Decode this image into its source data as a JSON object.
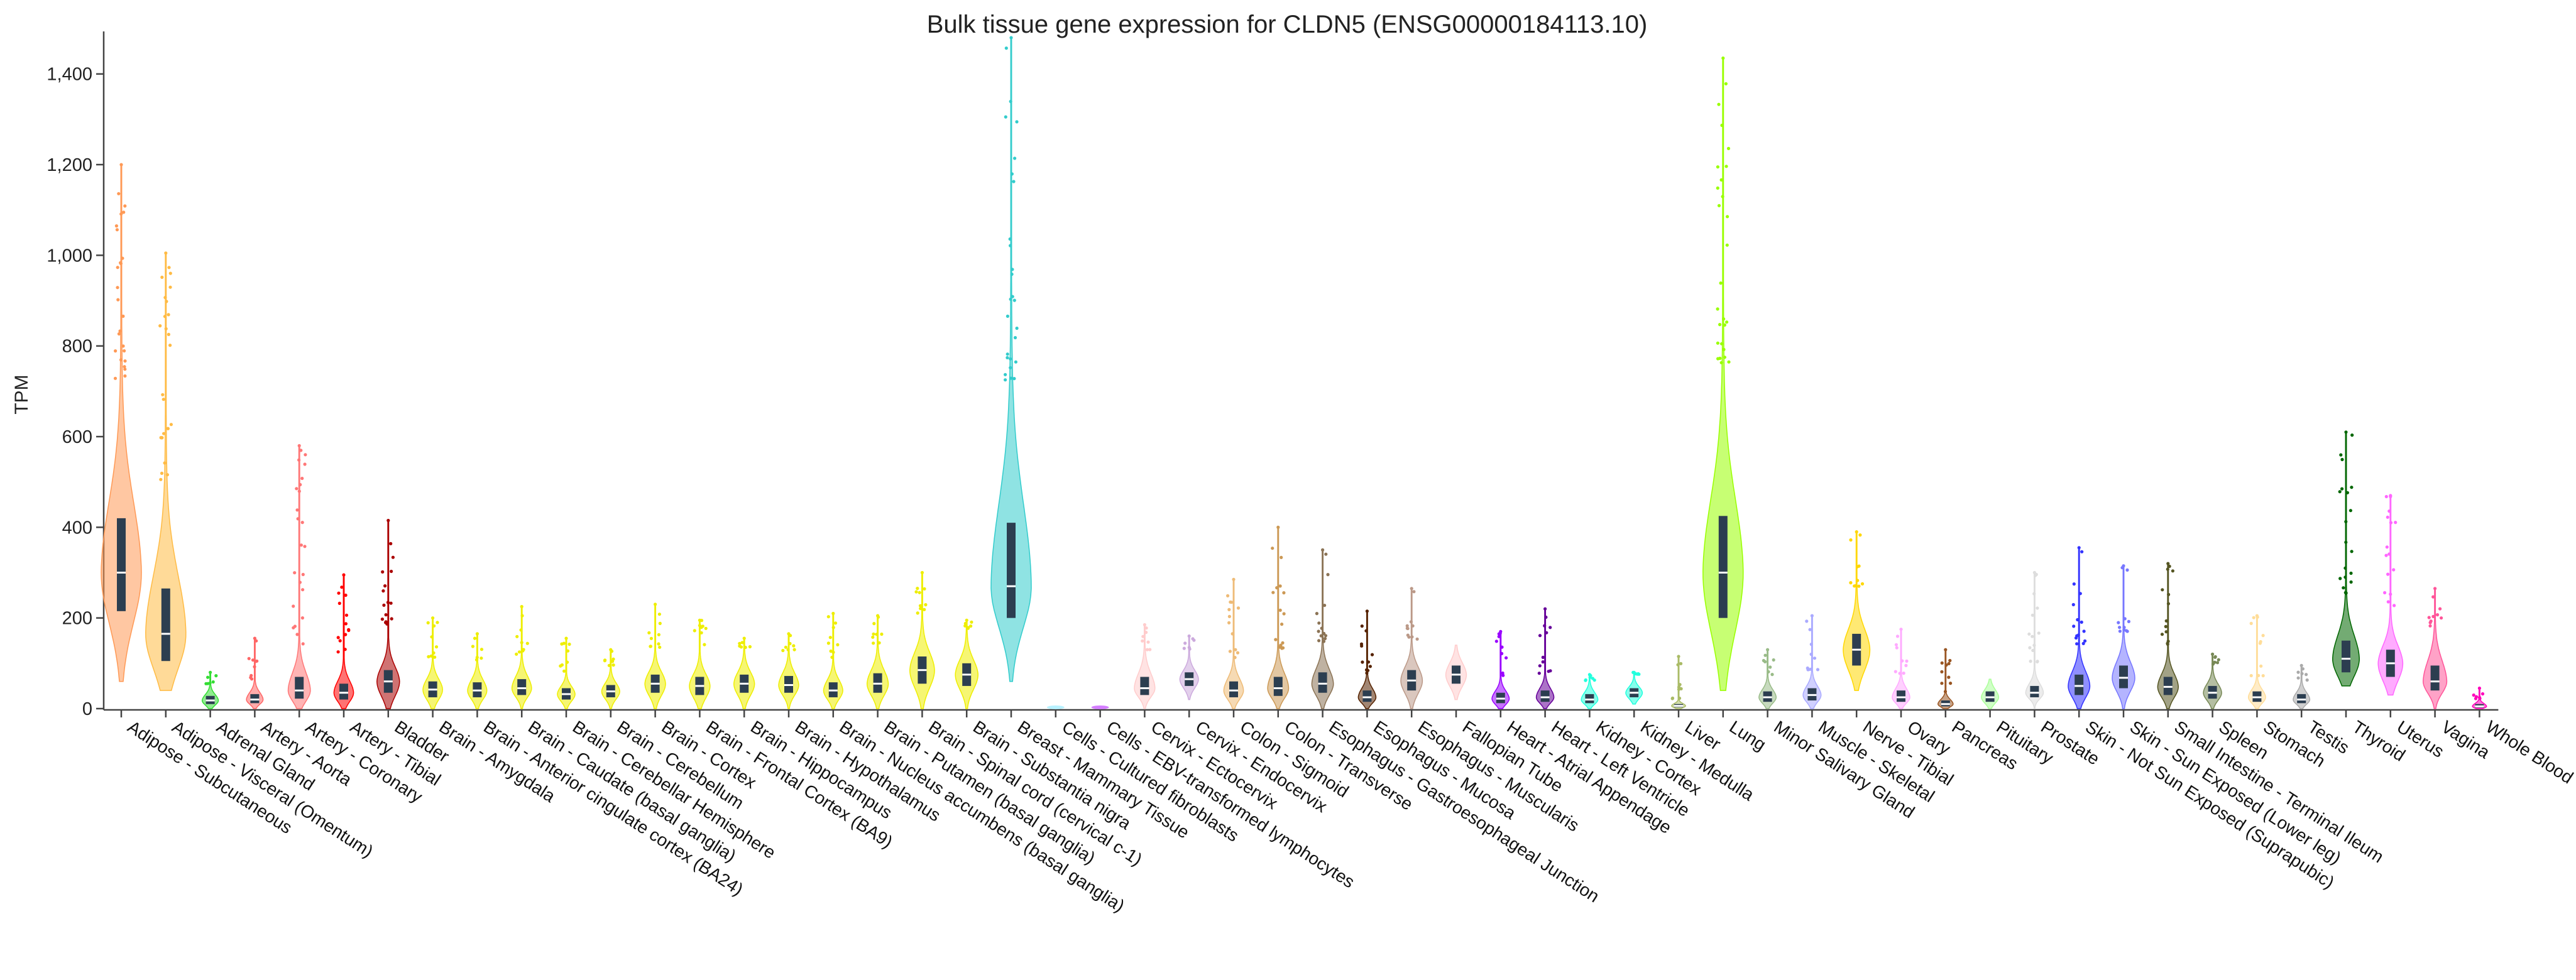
{
  "chart_data": {
    "type": "violin",
    "title": "Bulk tissue gene expression for CLDN5 (ENSG00000184113.10)",
    "xlabel": "",
    "ylabel": "TPM",
    "ylim": [
      0,
      1480
    ],
    "yticks": [
      0,
      200,
      400,
      600,
      800,
      1000,
      1200,
      1400
    ],
    "ytick_labels": [
      "0",
      "200",
      "400",
      "600",
      "800",
      "1,000",
      "1,200",
      "1,400"
    ],
    "grid": false,
    "categories": [
      "Adipose - Subcutaneous",
      "Adipose - Visceral (Omentum)",
      "Adrenal Gland",
      "Artery - Aorta",
      "Artery - Coronary",
      "Artery - Tibial",
      "Bladder",
      "Brain - Amygdala",
      "Brain - Anterior cingulate cortex (BA24)",
      "Brain - Caudate (basal ganglia)",
      "Brain - Cerebellar Hemisphere",
      "Brain - Cerebellum",
      "Brain - Cortex",
      "Brain - Frontal Cortex (BA9)",
      "Brain - Hippocampus",
      "Brain - Hypothalamus",
      "Brain - Nucleus accumbens (basal ganglia)",
      "Brain - Putamen (basal ganglia)",
      "Brain - Spinal cord (cervical c-1)",
      "Brain - Substantia nigra",
      "Breast - Mammary Tissue",
      "Cells - Cultured fibroblasts",
      "Cells - EBV-transformed lymphocytes",
      "Cervix - Ectocervix",
      "Cervix - Endocervix",
      "Colon - Sigmoid",
      "Colon - Transverse",
      "Esophagus - Gastroesophageal Junction",
      "Esophagus - Mucosa",
      "Esophagus - Muscularis",
      "Fallopian Tube",
      "Heart - Atrial Appendage",
      "Heart - Left Ventricle",
      "Kidney - Cortex",
      "Kidney - Medulla",
      "Liver",
      "Lung",
      "Minor Salivary Gland",
      "Muscle - Skeletal",
      "Nerve - Tibial",
      "Ovary",
      "Pancreas",
      "Pituitary",
      "Prostate",
      "Skin - Not Sun Exposed (Suprapubic)",
      "Skin - Sun Exposed (Lower leg)",
      "Small Intestine - Terminal Ileum",
      "Spleen",
      "Stomach",
      "Testis",
      "Thyroid",
      "Uterus",
      "Vagina",
      "Whole Blood"
    ],
    "series": [
      {
        "name": "Adipose - Subcutaneous",
        "color": "#FF9955",
        "min": 60,
        "q1": 215,
        "median": 300,
        "q3": 420,
        "max": 1200
      },
      {
        "name": "Adipose - Visceral (Omentum)",
        "color": "#FFBB44",
        "min": 40,
        "q1": 105,
        "median": 165,
        "q3": 265,
        "max": 1005
      },
      {
        "name": "Adrenal Gland",
        "color": "#33DD33",
        "min": 0,
        "q1": 10,
        "median": 18,
        "q3": 28,
        "max": 80
      },
      {
        "name": "Artery - Aorta",
        "color": "#FF6666",
        "min": 0,
        "q1": 12,
        "median": 20,
        "q3": 32,
        "max": 155
      },
      {
        "name": "Artery - Coronary",
        "color": "#FF7777",
        "min": 0,
        "q1": 22,
        "median": 40,
        "q3": 70,
        "max": 580
      },
      {
        "name": "Artery - Tibial",
        "color": "#FF0000",
        "min": 0,
        "q1": 20,
        "median": 35,
        "q3": 55,
        "max": 295
      },
      {
        "name": "Bladder",
        "color": "#AA0000",
        "min": 0,
        "q1": 35,
        "median": 60,
        "q3": 85,
        "max": 415
      },
      {
        "name": "Brain - Amygdala",
        "color": "#EEEE00",
        "min": 0,
        "q1": 25,
        "median": 42,
        "q3": 60,
        "max": 200
      },
      {
        "name": "Brain - Anterior cingulate cortex (BA24)",
        "color": "#EEEE00",
        "min": 0,
        "q1": 25,
        "median": 40,
        "q3": 58,
        "max": 165
      },
      {
        "name": "Brain - Caudate (basal ganglia)",
        "color": "#EEEE00",
        "min": 0,
        "q1": 30,
        "median": 45,
        "q3": 65,
        "max": 225
      },
      {
        "name": "Brain - Cerebellar Hemisphere",
        "color": "#EEEE00",
        "min": 0,
        "q1": 20,
        "median": 32,
        "q3": 45,
        "max": 155
      },
      {
        "name": "Brain - Cerebellum",
        "color": "#EEEE00",
        "min": 0,
        "q1": 25,
        "median": 38,
        "q3": 52,
        "max": 130
      },
      {
        "name": "Brain - Cortex",
        "color": "#EEEE00",
        "min": 0,
        "q1": 35,
        "median": 55,
        "q3": 75,
        "max": 230
      },
      {
        "name": "Brain - Frontal Cortex (BA9)",
        "color": "#EEEE00",
        "min": 0,
        "q1": 30,
        "median": 50,
        "q3": 70,
        "max": 195
      },
      {
        "name": "Brain - Hippocampus",
        "color": "#EEEE00",
        "min": 0,
        "q1": 35,
        "median": 55,
        "q3": 75,
        "max": 155
      },
      {
        "name": "Brain - Hypothalamus",
        "color": "#EEEE00",
        "min": 0,
        "q1": 35,
        "median": 52,
        "q3": 72,
        "max": 165
      },
      {
        "name": "Brain - Nucleus accumbens (basal ganglia)",
        "color": "#EEEE00",
        "min": 0,
        "q1": 25,
        "median": 40,
        "q3": 58,
        "max": 210
      },
      {
        "name": "Brain - Putamen (basal ganglia)",
        "color": "#EEEE00",
        "min": 0,
        "q1": 35,
        "median": 55,
        "q3": 78,
        "max": 205
      },
      {
        "name": "Brain - Spinal cord (cervical c-1)",
        "color": "#EEEE00",
        "min": 0,
        "q1": 55,
        "median": 85,
        "q3": 115,
        "max": 300
      },
      {
        "name": "Brain - Substantia nigra",
        "color": "#EEEE00",
        "min": 0,
        "q1": 50,
        "median": 75,
        "q3": 100,
        "max": 195
      },
      {
        "name": "Breast - Mammary Tissue",
        "color": "#33CCCC",
        "min": 60,
        "q1": 200,
        "median": 270,
        "q3": 410,
        "max": 1480
      },
      {
        "name": "Cells - Cultured fibroblasts",
        "color": "#AAEEFF",
        "min": 0,
        "q1": 0,
        "median": 0,
        "q3": 0,
        "max": 3
      },
      {
        "name": "Cells - EBV-transformed lymphocytes",
        "color": "#CC66FF",
        "min": 0,
        "q1": 0,
        "median": 0,
        "q3": 0,
        "max": 2
      },
      {
        "name": "Cervix - Ectocervix",
        "color": "#FFCCCC",
        "min": 0,
        "q1": 30,
        "median": 45,
        "q3": 70,
        "max": 185
      },
      {
        "name": "Cervix - Endocervix",
        "color": "#CCAADD",
        "min": 20,
        "q1": 50,
        "median": 65,
        "q3": 80,
        "max": 160
      },
      {
        "name": "Colon - Sigmoid",
        "color": "#EEBB77",
        "min": 0,
        "q1": 25,
        "median": 40,
        "q3": 60,
        "max": 285
      },
      {
        "name": "Colon - Transverse",
        "color": "#CC9955",
        "min": 0,
        "q1": 28,
        "median": 45,
        "q3": 70,
        "max": 400
      },
      {
        "name": "Esophagus - Gastroesophageal Junction",
        "color": "#8B7355",
        "min": 0,
        "q1": 35,
        "median": 55,
        "q3": 80,
        "max": 350
      },
      {
        "name": "Esophagus - Mucosa",
        "color": "#552200",
        "min": 0,
        "q1": 15,
        "median": 25,
        "q3": 40,
        "max": 215
      },
      {
        "name": "Esophagus - Muscularis",
        "color": "#BB9988",
        "min": 0,
        "q1": 40,
        "median": 62,
        "q3": 85,
        "max": 265
      },
      {
        "name": "Fallopian Tube",
        "color": "#FFCCCC",
        "min": 20,
        "q1": 55,
        "median": 75,
        "q3": 95,
        "max": 140
      },
      {
        "name": "Heart - Atrial Appendage",
        "color": "#9900FF",
        "min": 0,
        "q1": 12,
        "median": 22,
        "q3": 35,
        "max": 170
      },
      {
        "name": "Heart - Left Ventricle",
        "color": "#660099",
        "min": 0,
        "q1": 15,
        "median": 25,
        "q3": 40,
        "max": 220
      },
      {
        "name": "Kidney - Cortex",
        "color": "#22FFDD",
        "min": 0,
        "q1": 12,
        "median": 20,
        "q3": 32,
        "max": 75
      },
      {
        "name": "Kidney - Medulla",
        "color": "#22FFDD",
        "min": 10,
        "q1": 25,
        "median": 35,
        "q3": 45,
        "max": 80
      },
      {
        "name": "Liver",
        "color": "#AABB66",
        "min": 0,
        "q1": 3,
        "median": 6,
        "q3": 10,
        "max": 115
      },
      {
        "name": "Lung",
        "color": "#99FF00",
        "min": 40,
        "q1": 200,
        "median": 300,
        "q3": 425,
        "max": 1435
      },
      {
        "name": "Minor Salivary Gland",
        "color": "#99BB88",
        "min": 0,
        "q1": 15,
        "median": 25,
        "q3": 38,
        "max": 130
      },
      {
        "name": "Muscle - Skeletal",
        "color": "#AAAAFF",
        "min": 0,
        "q1": 18,
        "median": 30,
        "q3": 45,
        "max": 205
      },
      {
        "name": "Nerve - Tibial",
        "color": "#FFD700",
        "min": 40,
        "q1": 95,
        "median": 130,
        "q3": 165,
        "max": 390
      },
      {
        "name": "Ovary",
        "color": "#FFAAFF",
        "min": 0,
        "q1": 15,
        "median": 25,
        "q3": 40,
        "max": 175
      },
      {
        "name": "Pancreas",
        "color": "#995522",
        "min": 0,
        "q1": 5,
        "median": 10,
        "q3": 18,
        "max": 130
      },
      {
        "name": "Pituitary",
        "color": "#AAFF99",
        "min": 0,
        "q1": 15,
        "median": 25,
        "q3": 38,
        "max": 65
      },
      {
        "name": "Prostate",
        "color": "#DDDDDD",
        "min": 0,
        "q1": 25,
        "median": 35,
        "q3": 50,
        "max": 300
      },
      {
        "name": "Skin - Not Sun Exposed (Suprapubic)",
        "color": "#3333FF",
        "min": 0,
        "q1": 30,
        "median": 50,
        "q3": 75,
        "max": 355
      },
      {
        "name": "Skin - Sun Exposed (Lower leg)",
        "color": "#7777FF",
        "min": 0,
        "q1": 45,
        "median": 68,
        "q3": 95,
        "max": 315
      },
      {
        "name": "Small Intestine - Terminal Ileum",
        "color": "#555522",
        "min": 0,
        "q1": 30,
        "median": 48,
        "q3": 70,
        "max": 320
      },
      {
        "name": "Spleen",
        "color": "#778855",
        "min": 0,
        "q1": 22,
        "median": 35,
        "q3": 50,
        "max": 120
      },
      {
        "name": "Stomach",
        "color": "#FFDD99",
        "min": 0,
        "q1": 15,
        "median": 25,
        "q3": 38,
        "max": 205
      },
      {
        "name": "Testis",
        "color": "#AAAAAA",
        "min": 0,
        "q1": 12,
        "median": 20,
        "q3": 32,
        "max": 95
      },
      {
        "name": "Thyroid",
        "color": "#006600",
        "min": 50,
        "q1": 80,
        "median": 110,
        "q3": 150,
        "max": 610
      },
      {
        "name": "Uterus",
        "color": "#FF66FF",
        "min": 30,
        "q1": 70,
        "median": 100,
        "q3": 130,
        "max": 470
      },
      {
        "name": "Vagina",
        "color": "#FF5599",
        "min": 0,
        "q1": 40,
        "median": 60,
        "q3": 95,
        "max": 265
      },
      {
        "name": "Whole Blood",
        "color": "#FF00BB",
        "min": 0,
        "q1": 2,
        "median": 5,
        "q3": 10,
        "max": 45
      }
    ]
  }
}
